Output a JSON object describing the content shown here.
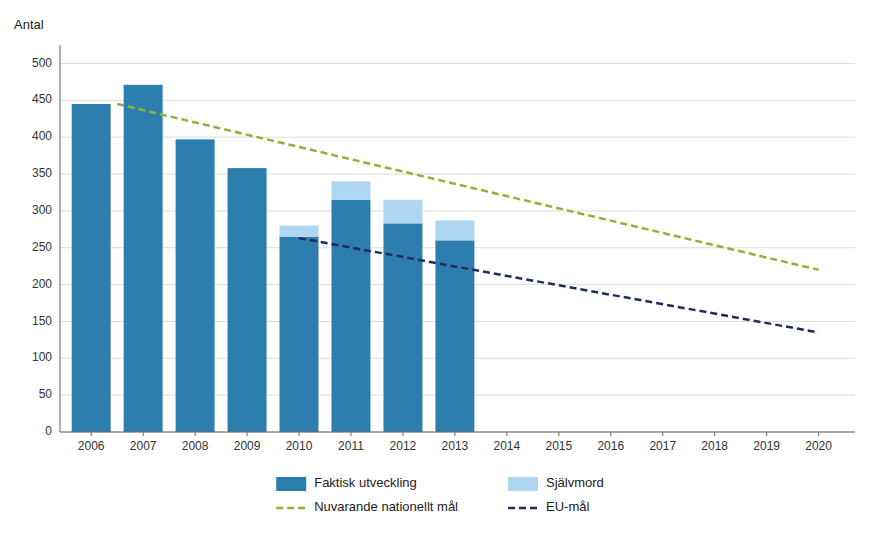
{
  "chart_data": {
    "type": "bar",
    "stacked": true,
    "ylabel": "Antal",
    "x": [
      2006,
      2007,
      2008,
      2009,
      2010,
      2011,
      2012,
      2013
    ],
    "series": [
      {
        "name": "Faktisk utveckling",
        "type": "bar",
        "color": "#2E7DAF",
        "values": [
          445,
          471,
          397,
          358,
          265,
          315,
          283,
          260
        ]
      },
      {
        "name": "Självmord",
        "type": "bar",
        "color": "#AED6F1",
        "values": [
          0,
          0,
          0,
          0,
          15,
          25,
          32,
          27
        ]
      },
      {
        "name": "Nuvarande nationellt mål",
        "type": "line",
        "line_style": "dashed",
        "color": "#8DB33A",
        "x": [
          2006.5,
          2020
        ],
        "values": [
          445,
          220
        ]
      },
      {
        "name": "EU-mål",
        "type": "line",
        "line_style": "dashed",
        "color": "#1F2D5C",
        "x": [
          2010,
          2020
        ],
        "values": [
          263,
          135
        ]
      }
    ],
    "xlim": [
      2005.4,
      2020.7
    ],
    "xticks": [
      2006,
      2007,
      2008,
      2009,
      2010,
      2011,
      2012,
      2013,
      2014,
      2015,
      2016,
      2017,
      2018,
      2019,
      2020
    ],
    "ylim": [
      0,
      525
    ],
    "yticks": [
      0,
      50,
      100,
      150,
      200,
      250,
      300,
      350,
      400,
      450,
      500
    ],
    "grid": true,
    "legend": "bottom"
  }
}
